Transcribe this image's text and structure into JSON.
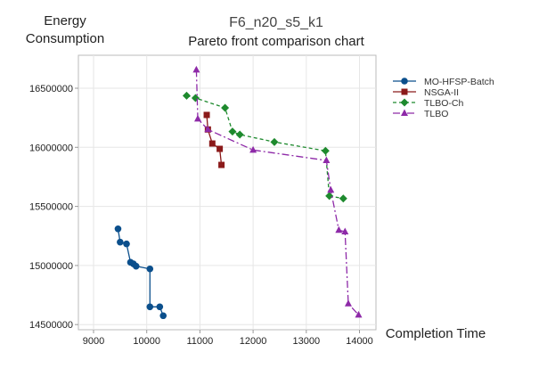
{
  "chart_data": {
    "type": "line",
    "title": "F6_n20_s5_k1",
    "subtitle": "Pareto front comparison chart",
    "xlabel": "Completion Time",
    "ylabel": "Energy Consumption",
    "xlim": [
      8850,
      14450
    ],
    "ylim": [
      14380000,
      16880000
    ],
    "xticks": [
      9000,
      10000,
      11000,
      12000,
      13000,
      14000
    ],
    "yticks": [
      14500000,
      15000000,
      15500000,
      16000000,
      16500000
    ],
    "grid": true,
    "legend_position": "right",
    "series": [
      {
        "name": "MO-HFSP-Batch",
        "color": "#0b4f8c",
        "marker": "circle",
        "dash": "",
        "points": [
          [
            9460,
            15310000
          ],
          [
            9500,
            15198000
          ],
          [
            9620,
            15183000
          ],
          [
            9695,
            15027000
          ],
          [
            9750,
            15014000
          ],
          [
            9800,
            14994000
          ],
          [
            10060,
            14971000
          ],
          [
            10060,
            14650000
          ],
          [
            10245,
            14650000
          ],
          [
            10310,
            14575000
          ]
        ]
      },
      {
        "name": "NSGA-II",
        "color": "#8b1a1a",
        "marker": "square",
        "dash": "",
        "points": [
          [
            11128,
            16274000
          ],
          [
            11150,
            16151000
          ],
          [
            11233,
            16032000
          ],
          [
            11372,
            15987000
          ],
          [
            11405,
            15851000
          ]
        ]
      },
      {
        "name": "TLBO-Ch",
        "color": "#1e8a2e",
        "marker": "diamond",
        "dash": "4,3",
        "points": [
          [
            10750,
            16437000
          ],
          [
            10917,
            16417000
          ],
          [
            11472,
            16334000
          ],
          [
            11612,
            16133000
          ],
          [
            11750,
            16108000
          ],
          [
            12400,
            16045000
          ],
          [
            13361,
            15970000
          ],
          [
            13433,
            15588000
          ],
          [
            13695,
            15567000
          ]
        ]
      },
      {
        "name": "TLBO",
        "color": "#8e2aa8",
        "marker": "triangle",
        "dash": "8,3,2,3",
        "points": [
          [
            10933,
            16656000
          ],
          [
            10960,
            16241000
          ],
          [
            11150,
            16151000
          ],
          [
            12000,
            15977000
          ],
          [
            13378,
            15889000
          ],
          [
            13460,
            15638000
          ],
          [
            13612,
            15299000
          ],
          [
            13728,
            15286000
          ],
          [
            13790,
            14677000
          ],
          [
            13983,
            14582000
          ]
        ]
      }
    ]
  }
}
